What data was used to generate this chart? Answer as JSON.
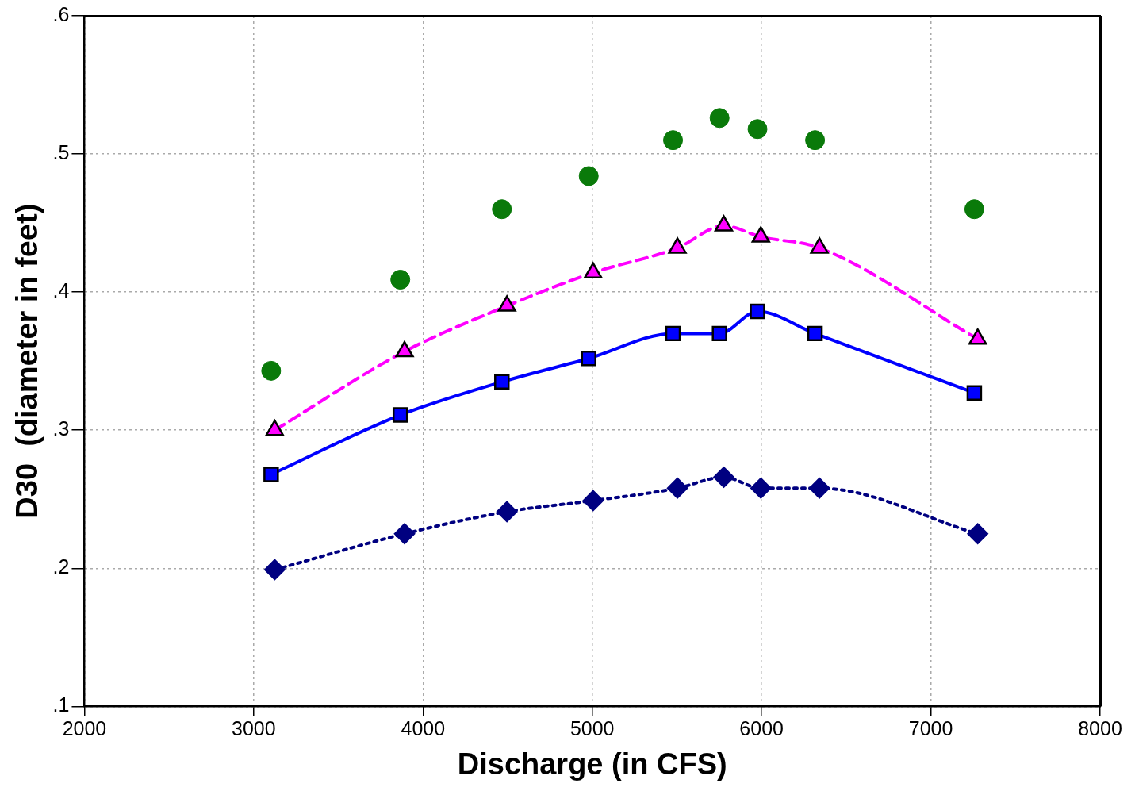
{
  "chart_data": {
    "type": "line",
    "xlabel": "Discharge (in CFS)",
    "ylabel": "D30  (diameter in feet)",
    "xlim": [
      2000,
      8000
    ],
    "xticks": [
      2000,
      3000,
      4000,
      5000,
      6000,
      7000,
      8000
    ],
    "ylim": [
      0.1,
      0.6
    ],
    "yticks": [
      {
        "value": 0.1,
        "label": ".1"
      },
      {
        "value": 0.2,
        "label": ".2"
      },
      {
        "value": 0.3,
        "label": ".3"
      },
      {
        "value": 0.4,
        "label": ".4"
      },
      {
        "value": 0.5,
        "label": ".5"
      },
      {
        "value": 0.6,
        "label": ".6"
      }
    ],
    "grid": true,
    "legend": false,
    "series": [
      {
        "type": "scatter",
        "color": "#0a7a0a",
        "marker": "circle",
        "x": [
          3103,
          3866,
          4466,
          4979,
          5477,
          5752,
          5976,
          6316,
          7257
        ],
        "values": [
          0.343,
          0.409,
          0.46,
          0.484,
          0.51,
          0.526,
          0.518,
          0.51,
          0.46
        ]
      },
      {
        "type": "line",
        "color": "#ff00ff",
        "marker": "triangle",
        "line_style": "dashed",
        "x": [
          3124,
          3891,
          4496,
          5005,
          5503,
          5777,
          5996,
          6342,
          7277
        ],
        "values": [
          0.3,
          0.357,
          0.39,
          0.414,
          0.432,
          0.448,
          0.44,
          0.432,
          0.366
        ]
      },
      {
        "type": "line",
        "color": "#0000ff",
        "marker": "square",
        "line_style": "solid",
        "x": [
          3103,
          3866,
          4466,
          4979,
          5477,
          5752,
          5976,
          6316,
          7257
        ],
        "values": [
          0.268,
          0.311,
          0.335,
          0.352,
          0.37,
          0.37,
          0.386,
          0.37,
          0.327
        ]
      },
      {
        "type": "line",
        "color": "#000080",
        "marker": "diamond",
        "line_style": "dotted",
        "x": [
          3124,
          3891,
          4496,
          5005,
          5503,
          5777,
          5996,
          6342,
          7277
        ],
        "values": [
          0.199,
          0.225,
          0.241,
          0.249,
          0.258,
          0.266,
          0.258,
          0.258,
          0.225
        ]
      }
    ]
  }
}
